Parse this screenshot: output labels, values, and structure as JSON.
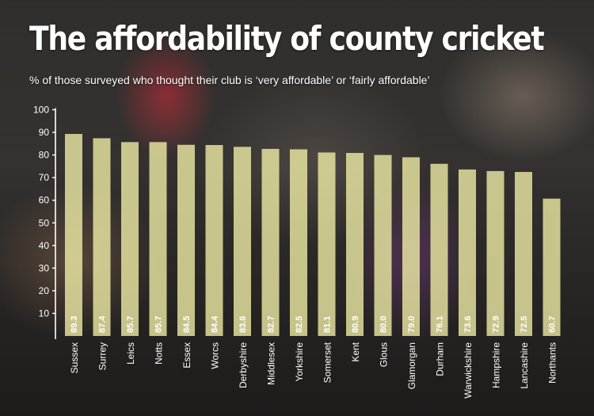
{
  "title": "The affordability of county cricket",
  "subtitle": "% of those surveyed who thought their club is ‘very affordable’ or ‘fairly affordable’",
  "colors": {
    "bar": "#f4f1a8",
    "text": "#ffffff",
    "value_text": "#ffffff"
  },
  "chart_data": {
    "type": "bar",
    "title": "The affordability of county cricket",
    "subtitle": "% of those surveyed who thought their club is ‘very affordable’ or ‘fairly affordable’",
    "xlabel": "",
    "ylabel": "",
    "ylim": [
      0,
      100
    ],
    "yticks": [
      10,
      20,
      30,
      40,
      50,
      60,
      70,
      80,
      90,
      100
    ],
    "grid": false,
    "categories": [
      "Sussex",
      "Surrey",
      "Leics",
      "Notts",
      "Essex",
      "Worcs",
      "Derbyshire",
      "Middlesex",
      "Yorkshire",
      "Somerset",
      "Kent",
      "Glous",
      "Glamorgan",
      "Durham",
      "Warwickshire",
      "Hampshire",
      "Lancashire",
      "Northants"
    ],
    "values": [
      89.3,
      87.4,
      85.7,
      85.7,
      84.5,
      84.4,
      83.6,
      82.7,
      82.5,
      81.1,
      80.9,
      80.0,
      79.0,
      76.1,
      73.6,
      72.9,
      72.5,
      60.7
    ],
    "value_labels": [
      "89.3",
      "87.4",
      "85.7",
      "85.7",
      "84.5",
      "84.4",
      "83.6",
      "82.7",
      "82.5",
      "81.1",
      "80.9",
      "80.0",
      "79.0",
      "76.1",
      "73.6",
      "72.9",
      "72.5",
      "60.7"
    ]
  }
}
